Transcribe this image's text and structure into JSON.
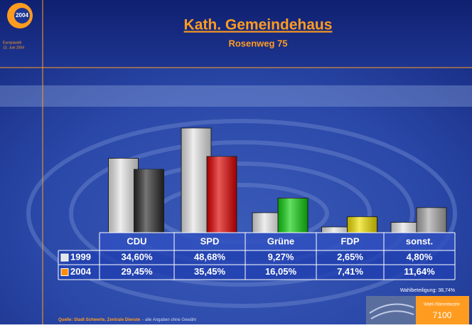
{
  "logo_text": "2004",
  "side_text": [
    "Europawahl",
    "13. Juni 2004"
  ],
  "footer": {
    "source": "Quelle: Stadt Schwerte, Zentrale Dienste",
    "note": "- alle Angaben ohne Gewähr",
    "turnout": "Wahlbeteiligung: 38,74%",
    "district_label": "Wahl-/Stimmbezirk:",
    "district": "7100"
  },
  "chart_data": {
    "type": "bar",
    "title": "Kath. Gemeindehaus",
    "subtitle": "Rosenweg 75",
    "categories": [
      "CDU",
      "SPD",
      "Grüne",
      "FDP",
      "sonst."
    ],
    "series": [
      {
        "name": "1999",
        "color": "#e6e6e6",
        "colors": [
          "#e6e6e6",
          "#e6e6e6",
          "#e6e6e6",
          "#e6e6e6",
          "#e6e6e6"
        ],
        "values": [
          34.6,
          48.68,
          9.27,
          2.65,
          4.8
        ],
        "value_labels": [
          "34,60%",
          "48,68%",
          "9,27%",
          "2,65%",
          "4,80%"
        ]
      },
      {
        "name": "2004",
        "color": "#ff8c00",
        "colors": [
          "#2a2a2a",
          "#e00000",
          "#10d010",
          "#f0e000",
          "#a8a8a8"
        ],
        "values": [
          29.45,
          35.45,
          16.05,
          7.41,
          11.64
        ],
        "value_labels": [
          "29,45%",
          "35,45%",
          "16,05%",
          "7,41%",
          "11,64%"
        ]
      }
    ]
  }
}
